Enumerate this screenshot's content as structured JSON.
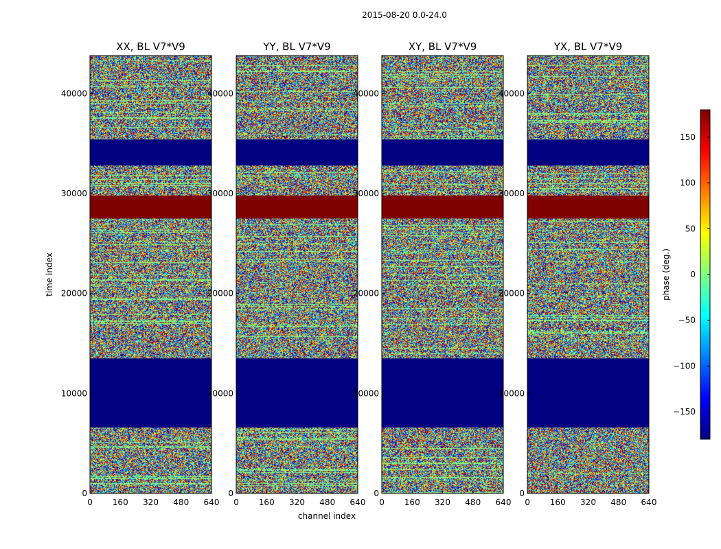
{
  "figure": {
    "suptitle": "2015-08-20 0.0-24.0",
    "xlabel": "channel index",
    "ylabel": "time index"
  },
  "chart_data": {
    "type": "heatmap",
    "panels": [
      {
        "title": "XX, BL V7*V9",
        "seed": 11
      },
      {
        "title": "YY, BL V7*V9",
        "seed": 23
      },
      {
        "title": "XY, BL V7*V9",
        "seed": 37
      },
      {
        "title": "YX, BL V7*V9",
        "seed": 53
      }
    ],
    "xlim": [
      0,
      640
    ],
    "ylim": [
      0,
      43800
    ],
    "x_ticks": [
      0,
      160,
      320,
      480,
      640
    ],
    "x_tick_labels": [
      "0",
      "160",
      "320",
      "480",
      "640"
    ],
    "y_ticks": [
      0,
      10000,
      20000,
      30000,
      40000
    ],
    "y_tick_labels": [
      "0",
      "10000",
      "20000",
      "30000",
      "40000"
    ],
    "colorbar": {
      "label": "phase (deg.)",
      "range": [
        -180,
        180
      ],
      "ticks": [
        -150,
        -100,
        -50,
        0,
        50,
        100,
        150
      ],
      "tick_labels": [
        "−150",
        "−100",
        "−50",
        "0",
        "50",
        "100",
        "150"
      ],
      "colormap": "jet"
    },
    "bands": [
      {
        "t0": 6600,
        "t1": 13500,
        "phase": -180
      },
      {
        "t0": 27500,
        "t1": 29800,
        "phase": 180
      },
      {
        "t0": 32800,
        "t1": 35400,
        "phase": -180
      }
    ]
  }
}
